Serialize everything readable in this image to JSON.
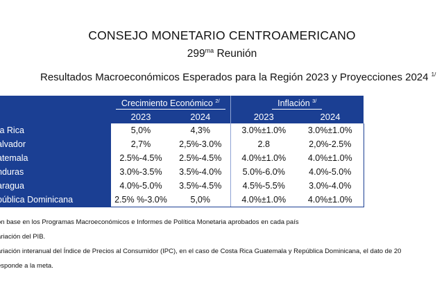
{
  "header": {
    "org": "CONSEJO MONETARIO CENTROAMERICANO",
    "meeting_number": "299",
    "meeting_suffix": "ma",
    "meeting_word": " Reunión",
    "subtitle": "Resultados Macroeconómicos Esperados para la Región 2023 y Proyecciones 2024",
    "subtitle_note": "1/"
  },
  "table": {
    "group_headers": [
      {
        "label": "Crecimiento Económico",
        "note": "2/"
      },
      {
        "label": "Inflación",
        "note": "3/"
      }
    ],
    "years": [
      "2023",
      "2024",
      "2023",
      "2024"
    ],
    "rows": [
      {
        "country": "ta Rica",
        "values": [
          "5,0%",
          "4,3%",
          "3.0%±1.0%",
          "3.0%±1.0%"
        ]
      },
      {
        "country": "alvador",
        "values": [
          "2,7%",
          "2,5%-3.0%",
          "2.8",
          "2,0%-2.5%"
        ]
      },
      {
        "country": "atemala",
        "values": [
          "2.5%-4.5%",
          "2.5%-4.5%",
          "4.0%±1.0%",
          "4.0%±1.0%"
        ]
      },
      {
        "country": "nduras",
        "values": [
          "3.0%-3.5%",
          "3.5%-4.0%",
          "5.0%-6.0%",
          "4.0%-5.0%"
        ]
      },
      {
        "country": "aragua",
        "values": [
          "4.0%-5.0%",
          "3.5%-4.5%",
          "4.5%-5.5%",
          "3.0%-4.0%"
        ]
      },
      {
        "country": "pública Dominicana",
        "values": [
          "2.5% %-3.0%",
          "5,0%",
          "4.0%±1.0%",
          "4.0%±1.0%"
        ]
      }
    ]
  },
  "notes": [
    "on base en los Programas Macroeconómicos e Informes de Política Monetaria aprobados en cada país",
    "ariación del PIB.",
    "ariación interanual del Índice de Precios al Consumidor (IPC), en el caso de Costa Rica Guatemala y República Dominicana, el dato de 20",
    "esponde a la meta."
  ],
  "colors": {
    "header_blue": "#1b3f93"
  }
}
